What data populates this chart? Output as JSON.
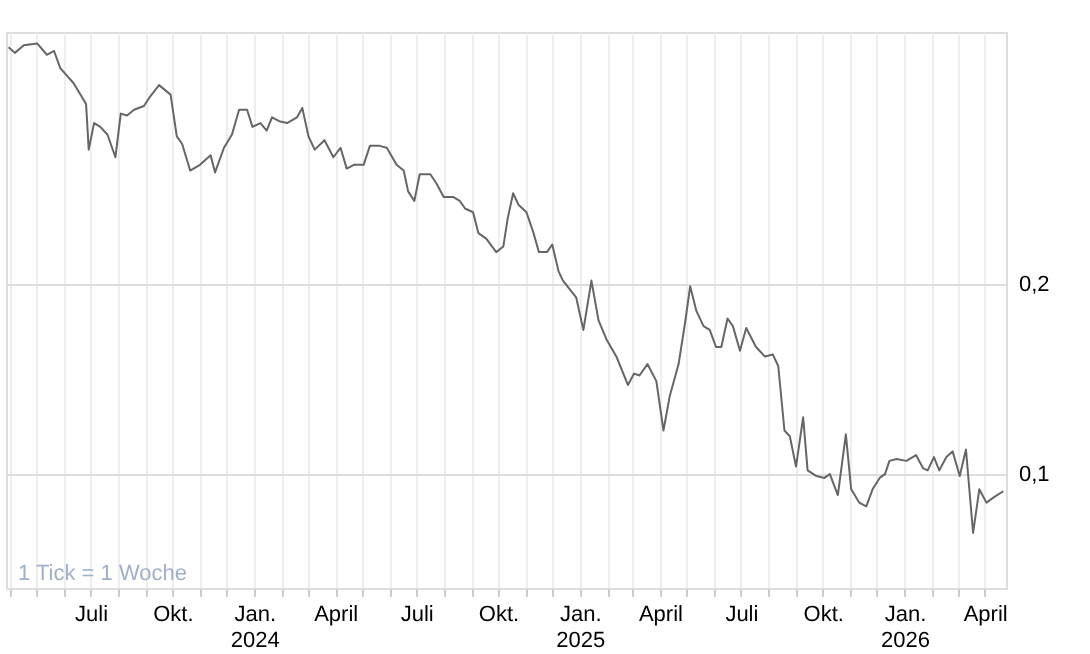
{
  "chart_data": {
    "type": "line",
    "x": [
      "2023-03-31",
      "2023-04-07",
      "2023-04-17",
      "2023-05-02",
      "2023-05-13",
      "2023-05-21",
      "2023-05-28",
      "2023-06-12",
      "2023-06-21",
      "2023-06-26",
      "2023-06-29",
      "2023-07-05",
      "2023-07-12",
      "2023-07-20",
      "2023-07-29",
      "2023-08-04",
      "2023-08-11",
      "2023-08-19",
      "2023-08-30",
      "2023-09-06",
      "2023-09-16",
      "2023-09-29",
      "2023-10-06",
      "2023-10-12",
      "2023-10-21",
      "2023-11-01",
      "2023-11-13",
      "2023-11-18",
      "2023-11-28",
      "2023-12-07",
      "2023-12-15",
      "2023-12-24",
      "2023-12-30",
      "2024-01-08",
      "2024-01-15",
      "2024-01-21",
      "2024-01-29",
      "2024-02-07",
      "2024-02-18",
      "2024-02-24",
      "2024-03-02",
      "2024-03-09",
      "2024-03-20",
      "2024-03-30",
      "2024-04-07",
      "2024-04-14",
      "2024-04-22",
      "2024-05-03",
      "2024-05-10",
      "2024-05-21",
      "2024-05-29",
      "2024-06-09",
      "2024-06-17",
      "2024-06-22",
      "2024-06-29",
      "2024-07-05",
      "2024-07-17",
      "2024-07-24",
      "2024-08-01",
      "2024-08-12",
      "2024-08-19",
      "2024-08-25",
      "2024-09-03",
      "2024-09-09",
      "2024-09-18",
      "2024-09-29",
      "2024-10-07",
      "2024-10-12",
      "2024-10-18",
      "2024-10-24",
      "2024-11-02",
      "2024-11-10",
      "2024-11-16",
      "2024-11-25",
      "2024-12-01",
      "2024-12-08",
      "2024-12-13",
      "2024-12-28",
      "2025-01-05",
      "2025-01-14",
      "2025-01-22",
      "2025-01-31",
      "2025-02-11",
      "2025-02-24",
      "2025-03-03",
      "2025-03-09",
      "2025-03-18",
      "2025-03-28",
      "2025-04-05",
      "2025-04-12",
      "2025-04-22",
      "2025-04-29",
      "2025-05-05",
      "2025-05-12",
      "2025-05-20",
      "2025-05-27",
      "2025-06-03",
      "2025-06-09",
      "2025-06-16",
      "2025-06-22",
      "2025-06-30",
      "2025-07-07",
      "2025-07-18",
      "2025-07-28",
      "2025-08-06",
      "2025-08-12",
      "2025-08-19",
      "2025-08-25",
      "2025-09-01",
      "2025-09-09",
      "2025-09-14",
      "2025-09-24",
      "2025-10-03",
      "2025-10-09",
      "2025-10-18",
      "2025-10-27",
      "2025-11-02",
      "2025-11-11",
      "2025-11-19",
      "2025-11-26",
      "2025-12-04",
      "2025-12-10",
      "2025-12-15",
      "2025-12-23",
      "2026-01-03",
      "2026-01-14",
      "2026-01-22",
      "2026-01-27",
      "2026-02-03",
      "2026-02-09",
      "2026-02-17",
      "2026-02-24",
      "2026-03-04",
      "2026-03-11",
      "2026-03-19",
      "2026-03-26",
      "2026-04-03",
      "2026-04-12",
      "2026-04-22"
    ],
    "series": [
      {
        "color": "#666666",
        "values": [
          0.325,
          0.322,
          0.326,
          0.327,
          0.321,
          0.323,
          0.314,
          0.306,
          0.299,
          0.295,
          0.271,
          0.285,
          0.283,
          0.279,
          0.267,
          0.29,
          0.289,
          0.292,
          0.294,
          0.299,
          0.305,
          0.3,
          0.278,
          0.274,
          0.26,
          0.263,
          0.268,
          0.259,
          0.272,
          0.279,
          0.292,
          0.292,
          0.283,
          0.285,
          0.281,
          0.288,
          0.286,
          0.285,
          0.288,
          0.293,
          0.278,
          0.271,
          0.276,
          0.267,
          0.272,
          0.261,
          0.263,
          0.263,
          0.273,
          0.273,
          0.272,
          0.263,
          0.26,
          0.249,
          0.244,
          0.258,
          0.258,
          0.253,
          0.246,
          0.246,
          0.244,
          0.24,
          0.238,
          0.227,
          0.224,
          0.217,
          0.22,
          0.235,
          0.248,
          0.242,
          0.238,
          0.227,
          0.217,
          0.217,
          0.221,
          0.207,
          0.202,
          0.193,
          0.176,
          0.202,
          0.181,
          0.171,
          0.162,
          0.147,
          0.153,
          0.152,
          0.158,
          0.149,
          0.123,
          0.141,
          0.158,
          0.179,
          0.199,
          0.186,
          0.178,
          0.176,
          0.167,
          0.167,
          0.182,
          0.178,
          0.165,
          0.177,
          0.167,
          0.162,
          0.163,
          0.157,
          0.123,
          0.12,
          0.104,
          0.13,
          0.102,
          0.099,
          0.098,
          0.1,
          0.089,
          0.121,
          0.092,
          0.085,
          0.083,
          0.092,
          0.098,
          0.1,
          0.107,
          0.108,
          0.107,
          0.11,
          0.103,
          0.102,
          0.109,
          0.102,
          0.109,
          0.112,
          0.099,
          0.113,
          0.069,
          0.092,
          0.085,
          0.088,
          0.091
        ]
      }
    ],
    "xlim": [
      "2023-03-28",
      "2026-04-25"
    ],
    "xticks": [
      {
        "value": "2023-04-01",
        "label": null
      },
      {
        "value": "2023-05-01",
        "label": null
      },
      {
        "value": "2023-06-01",
        "label": null
      },
      {
        "value": "2023-07-01",
        "label": "Juli"
      },
      {
        "value": "2023-08-01",
        "label": null
      },
      {
        "value": "2023-09-01",
        "label": null
      },
      {
        "value": "2023-10-01",
        "label": "Okt."
      },
      {
        "value": "2023-11-01",
        "label": null
      },
      {
        "value": "2023-12-01",
        "label": null
      },
      {
        "value": "2024-01-01",
        "label": "Jan.\n2024"
      },
      {
        "value": "2024-02-01",
        "label": null
      },
      {
        "value": "2024-03-01",
        "label": null
      },
      {
        "value": "2024-04-01",
        "label": "April"
      },
      {
        "value": "2024-05-01",
        "label": null
      },
      {
        "value": "2024-06-01",
        "label": null
      },
      {
        "value": "2024-07-01",
        "label": "Juli"
      },
      {
        "value": "2024-08-01",
        "label": null
      },
      {
        "value": "2024-09-01",
        "label": null
      },
      {
        "value": "2024-10-01",
        "label": "Okt."
      },
      {
        "value": "2024-11-01",
        "label": null
      },
      {
        "value": "2024-12-01",
        "label": null
      },
      {
        "value": "2025-01-01",
        "label": "Jan.\n2025"
      },
      {
        "value": "2025-02-01",
        "label": null
      },
      {
        "value": "2025-03-01",
        "label": null
      },
      {
        "value": "2025-04-01",
        "label": "April"
      },
      {
        "value": "2025-05-01",
        "label": null
      },
      {
        "value": "2025-06-01",
        "label": null
      },
      {
        "value": "2025-07-01",
        "label": "Juli"
      },
      {
        "value": "2025-08-01",
        "label": null
      },
      {
        "value": "2025-09-01",
        "label": null
      },
      {
        "value": "2025-10-01",
        "label": "Okt."
      },
      {
        "value": "2025-11-01",
        "label": null
      },
      {
        "value": "2025-12-01",
        "label": null
      },
      {
        "value": "2026-01-01",
        "label": "Jan.\n2026"
      },
      {
        "value": "2026-02-01",
        "label": null
      },
      {
        "value": "2026-03-01",
        "label": null
      },
      {
        "value": "2026-04-01",
        "label": "April"
      }
    ],
    "ylim": [
      0.04,
      0.333
    ],
    "yticks": [
      {
        "value": 0.1,
        "label": "0,1"
      },
      {
        "value": 0.2,
        "label": "0,2"
      }
    ],
    "grid": true,
    "legend": false,
    "annotations": [
      "1 Tick = 1 Woche"
    ]
  }
}
